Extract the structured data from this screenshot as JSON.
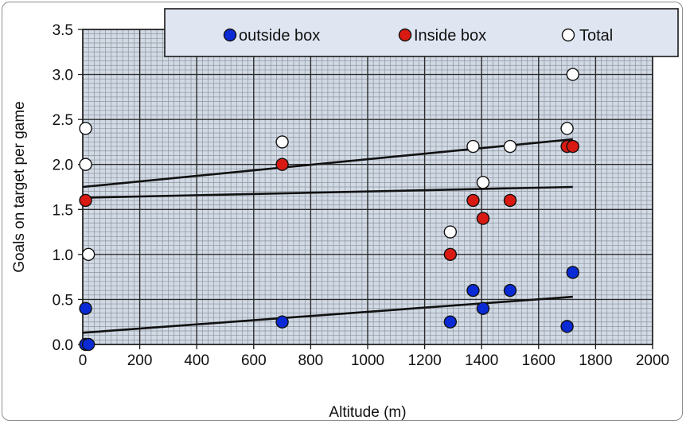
{
  "chart_data": {
    "type": "scatter",
    "xlabel": "Altitude (m)",
    "ylabel": "Goals on target per game",
    "xlim": [
      0,
      2000
    ],
    "ylim": [
      0,
      3.5
    ],
    "x_ticks": [
      "0",
      "200",
      "400",
      "600",
      "800",
      "1000",
      "1200",
      "1400",
      "1600",
      "1800",
      "2000"
    ],
    "y_ticks": [
      "0.0",
      "0.5",
      "1.0",
      "1.5",
      "2.0",
      "2.5",
      "3.0",
      "3.5"
    ],
    "grid": true,
    "legend_position": "top",
    "plot_background": "#d2dae6",
    "series": [
      {
        "name": "outside box",
        "color": "#0a2ad6",
        "points": [
          [
            10,
            0.4
          ],
          [
            10,
            0.0
          ],
          [
            20,
            0.0
          ],
          [
            700,
            0.25
          ],
          [
            1290,
            0.25
          ],
          [
            1370,
            0.6
          ],
          [
            1405,
            0.4
          ],
          [
            1500,
            0.6
          ],
          [
            1700,
            0.2
          ],
          [
            1720,
            0.8
          ]
        ],
        "trendline": [
          [
            0,
            0.13
          ],
          [
            1720,
            0.53
          ]
        ]
      },
      {
        "name": "Inside box",
        "color": "#d91a12",
        "points": [
          [
            10,
            1.6
          ],
          [
            700,
            2.0
          ],
          [
            1290,
            1.0
          ],
          [
            1370,
            1.6
          ],
          [
            1405,
            1.4
          ],
          [
            1500,
            1.6
          ],
          [
            1700,
            2.2
          ],
          [
            1720,
            2.2
          ]
        ],
        "trendline": [
          [
            0,
            1.63
          ],
          [
            1720,
            1.75
          ]
        ]
      },
      {
        "name": "Total",
        "color": "#ffffff",
        "points": [
          [
            10,
            2.4
          ],
          [
            10,
            2.0
          ],
          [
            20,
            1.0
          ],
          [
            700,
            2.25
          ],
          [
            1290,
            1.25
          ],
          [
            1370,
            2.2
          ],
          [
            1405,
            1.8
          ],
          [
            1500,
            2.2
          ],
          [
            1700,
            2.4
          ],
          [
            1720,
            3.0
          ]
        ],
        "trendline": [
          [
            0,
            1.75
          ],
          [
            1720,
            2.28
          ]
        ]
      }
    ]
  }
}
